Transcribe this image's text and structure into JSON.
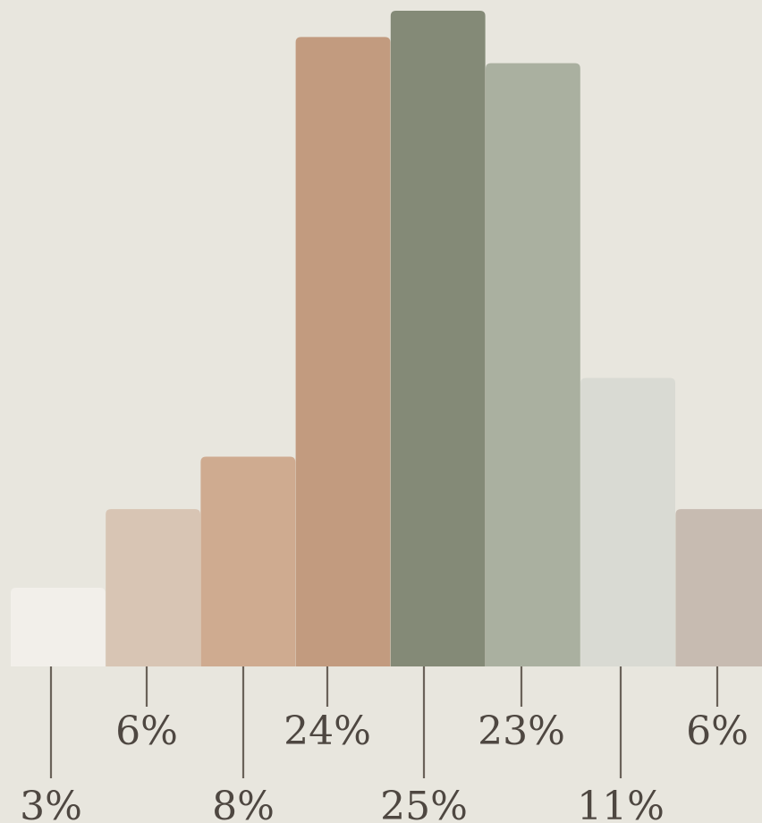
{
  "chart_data": {
    "type": "bar",
    "categories": [
      "",
      "",
      "",
      "",
      "",
      "",
      "",
      ""
    ],
    "values": [
      3,
      6,
      8,
      24,
      25,
      23,
      11,
      6
    ],
    "labels": [
      "3%",
      "6%",
      "8%",
      "24%",
      "25%",
      "23%",
      "11%",
      "6%"
    ],
    "colors": [
      "#f2efea",
      "#d8c5b4",
      "#cfab90",
      "#c29b7f",
      "#848a77",
      "#aab0a0",
      "#d9dad3",
      "#c7bbb1"
    ],
    "ylim": [
      0,
      25
    ],
    "grid": false,
    "legend": "none",
    "label_color": "#4e4741",
    "leader_color": "#6a6259",
    "background": "#e8e6de"
  }
}
